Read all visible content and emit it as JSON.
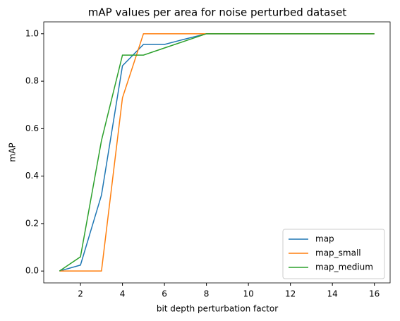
{
  "chart_data": {
    "type": "line",
    "title": "mAP values per area for noise perturbed dataset",
    "x_label": "bit depth perturbation factor",
    "y_label": "mAP",
    "x": [
      1,
      2,
      3,
      4,
      5,
      6,
      7,
      8,
      16
    ],
    "series": [
      {
        "name": "map",
        "color": "#1f77b4",
        "values": [
          0,
          0.025,
          0.32,
          0.865,
          0.955,
          0.955,
          0.978,
          1.0,
          1.0
        ]
      },
      {
        "name": "map_small",
        "color": "#ff7f0e",
        "values": [
          0,
          0,
          0,
          0.73,
          1.0,
          1.0,
          1.0,
          1.0,
          1.0
        ]
      },
      {
        "name": "map_medium",
        "color": "#2ca02c",
        "values": [
          0,
          0.06,
          0.55,
          0.91,
          0.91,
          0.94,
          0.97,
          1.0,
          1.0
        ]
      }
    ],
    "xlim": [
      0.25,
      16.75
    ],
    "xticks": [
      2,
      4,
      6,
      8,
      10,
      12,
      14,
      16
    ],
    "ylim": [
      -0.05,
      1.05
    ],
    "yticks": [
      {
        "value": 0,
        "label": "0.0"
      },
      0.2,
      0.4,
      0.6,
      0.8,
      {
        "value": 1,
        "label": "1.0"
      }
    ],
    "legend": "lower right"
  }
}
